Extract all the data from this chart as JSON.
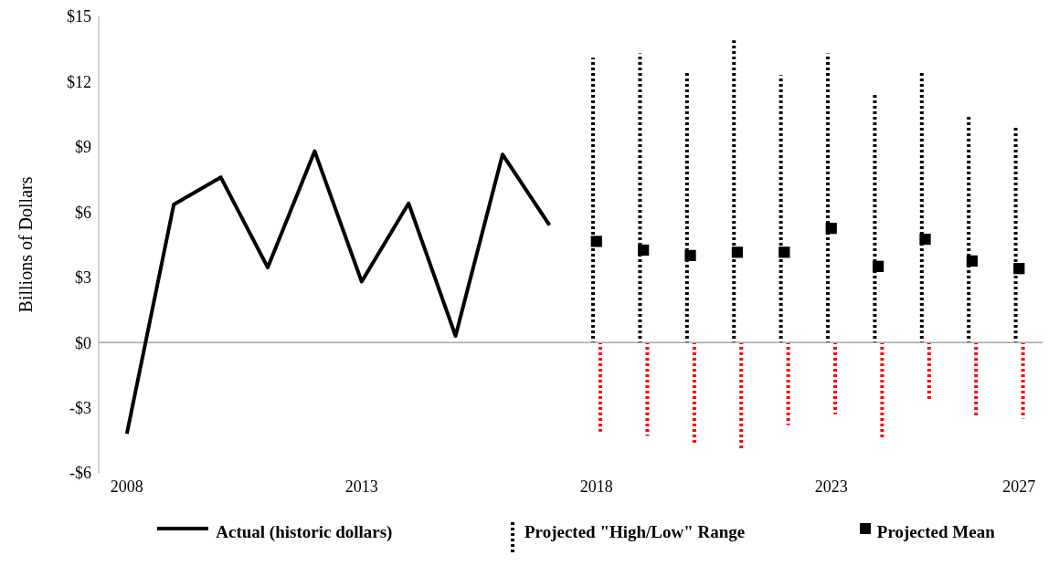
{
  "chart_data": {
    "type": "line",
    "ylabel": "Billions of Dollars",
    "xlim": [
      2007.4,
      2027.5
    ],
    "xticks": [
      2008,
      2013,
      2018,
      2023,
      2027
    ],
    "ylim": [
      -6,
      15
    ],
    "yticks": [
      {
        "value": -6,
        "label": "-$6"
      },
      {
        "value": -3,
        "label": "-$3"
      },
      {
        "value": 0,
        "label": "$0"
      },
      {
        "value": 3,
        "label": "$3"
      },
      {
        "value": 6,
        "label": "$6"
      },
      {
        "value": 9,
        "label": "$9"
      },
      {
        "value": 12,
        "label": "$12"
      },
      {
        "value": 15,
        "label": "$15"
      }
    ],
    "grid": false,
    "legend": "bottom",
    "ref_lines": [
      {
        "axis": "y",
        "value": 0,
        "color": "#a6a6a6"
      }
    ],
    "series": [
      {
        "name": "Actual (historic dollars)",
        "color": "#000000",
        "marker": "none",
        "line_style": "solid",
        "x": [
          2008,
          2009,
          2010,
          2011,
          2012,
          2013,
          2014,
          2015,
          2016,
          2017
        ],
        "values": [
          -4.2,
          6.35,
          7.6,
          3.45,
          8.8,
          2.8,
          6.4,
          0.3,
          8.65,
          5.4
        ]
      },
      {
        "name": "Projected \"High/Low\" Range",
        "type": "bar",
        "color": "#000000",
        "line_style": "dotted",
        "x": [
          2018,
          2019,
          2020,
          2021,
          2022,
          2023,
          2024,
          2025,
          2026,
          2027
        ],
        "base": [
          0,
          0,
          0,
          0,
          0,
          0,
          0,
          0,
          0,
          0
        ],
        "values": [
          13.1,
          13.3,
          12.4,
          13.9,
          12.3,
          13.3,
          11.5,
          12.4,
          10.5,
          9.9
        ]
      },
      {
        "type": "bar",
        "color": "#ff0000",
        "line_style": "dotted",
        "x": [
          2018,
          2019,
          2020,
          2021,
          2022,
          2023,
          2024,
          2025,
          2026,
          2027
        ],
        "base": [
          -4.1,
          -4.3,
          -4.7,
          -4.9,
          -3.8,
          -3.3,
          -4.4,
          -2.6,
          -3.4,
          -3.5
        ],
        "values": [
          4.1,
          4.3,
          4.7,
          4.9,
          3.8,
          3.3,
          4.4,
          2.6,
          3.4,
          3.5
        ]
      },
      {
        "name": "Projected Mean",
        "type": "scatter",
        "color": "#000000",
        "marker": "square",
        "x": [
          2018,
          2019,
          2020,
          2021,
          2022,
          2023,
          2024,
          2025,
          2026,
          2027
        ],
        "values": [
          4.65,
          4.25,
          4.0,
          4.15,
          4.15,
          5.25,
          3.5,
          4.75,
          3.75,
          3.4
        ]
      }
    ]
  }
}
